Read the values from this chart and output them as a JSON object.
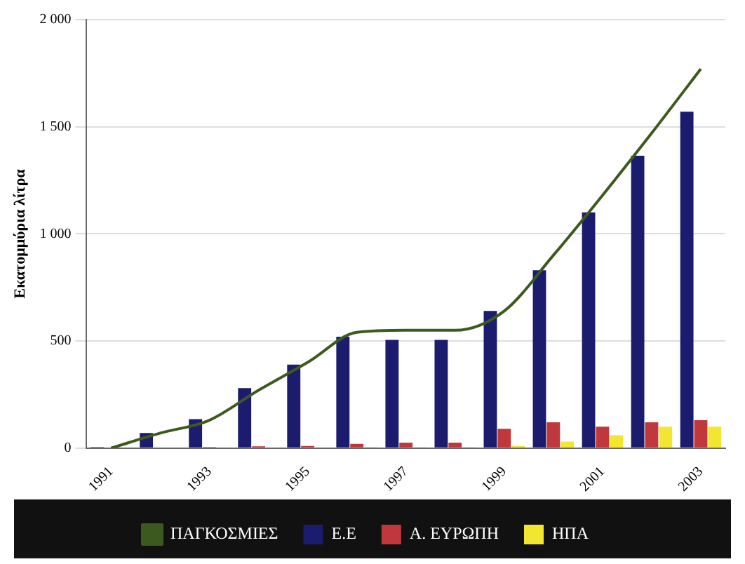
{
  "chart_data": {
    "type": "bar",
    "ylabel": "Εκατομμύρια λίτρα",
    "categories": [
      "1991",
      null,
      "1993",
      null,
      "1995",
      null,
      "1997",
      null,
      "1999",
      null,
      "2001",
      null,
      "2003"
    ],
    "series": [
      {
        "name": "Ε.Ε",
        "color": "#1c1c6e",
        "values": [
          5,
          70,
          135,
          280,
          390,
          520,
          505,
          505,
          640,
          830,
          1100,
          1365,
          1570
        ]
      },
      {
        "name": "Α. ΕΥΡΩΠΗ",
        "color": "#c0383c",
        "values": [
          null,
          3,
          5,
          8,
          10,
          20,
          25,
          25,
          90,
          120,
          100,
          120,
          130
        ]
      },
      {
        "name": "ΗΠΑ",
        "color": "#f2e630",
        "values": [
          0,
          0,
          0,
          0,
          0,
          5,
          5,
          5,
          10,
          30,
          60,
          100,
          100
        ]
      },
      {
        "name": "ΠΑΓΚΟΣΜΙΕΣ",
        "type": "line",
        "color": "#3d5a1e",
        "values": [
          0,
          70,
          130,
          270,
          400,
          540,
          550,
          550,
          640,
          900,
          1180,
          1470,
          1770
        ]
      }
    ],
    "ylim": [
      0,
      2000
    ],
    "yticks": [
      {
        "value": 0,
        "label": "0"
      },
      {
        "value": 500,
        "label": "500"
      },
      {
        "value": 1000,
        "label": "1 000"
      },
      {
        "value": 1500,
        "label": "1 500"
      },
      {
        "value": 2000,
        "label": "2 000"
      }
    ],
    "grid": "y",
    "legend": "bottom"
  }
}
